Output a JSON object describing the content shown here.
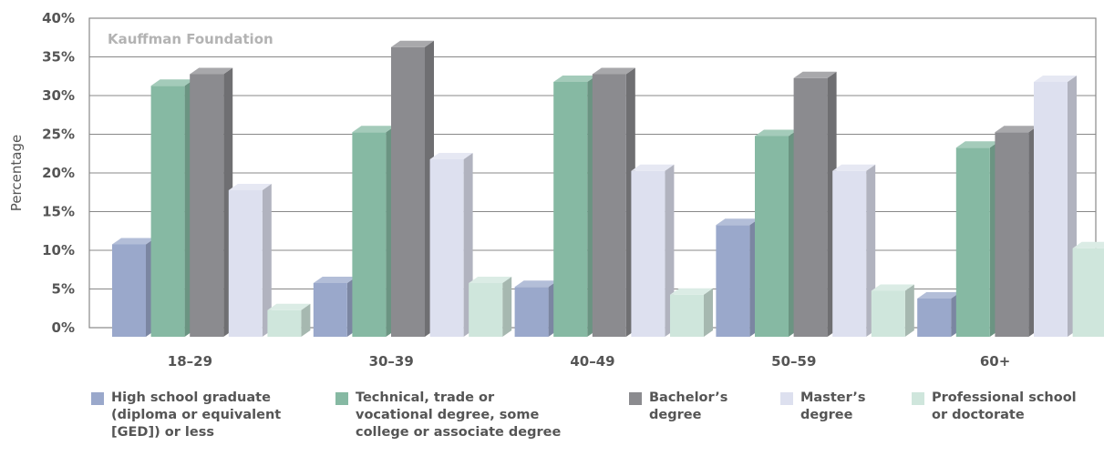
{
  "chart_data": {
    "type": "bar",
    "watermark": "Kauffman Foundation",
    "ylabel": "Percentage",
    "xlabel": "",
    "ylim": [
      0,
      40
    ],
    "yticks": [
      "0%",
      "5%",
      "10%",
      "15%",
      "20%",
      "25%",
      "30%",
      "35%",
      "40%"
    ],
    "categories": [
      "18–29",
      "30–39",
      "40–49",
      "50–59",
      "60+"
    ],
    "grid": true,
    "legend_position": "bottom",
    "series": [
      {
        "name": "High school graduate (diploma or equivalent [GED]) or less",
        "color": "#9aa8cb",
        "values": [
          11,
          6,
          5.5,
          13.5,
          4
        ]
      },
      {
        "name": "Technical, trade or vocational degree, some college or associate degree",
        "color": "#86b9a3",
        "values": [
          31.5,
          25.5,
          32,
          25,
          23.5
        ]
      },
      {
        "name": "Bachelor’s degree",
        "color": "#8b8b8f",
        "values": [
          33,
          36.5,
          33,
          32.5,
          25.5
        ]
      },
      {
        "name": "Master’s degree",
        "color": "#dde0ef",
        "values": [
          18,
          22,
          20.5,
          20.5,
          32
        ]
      },
      {
        "name": "Professional school or doctorate",
        "color": "#cfe6dc",
        "values": [
          2.5,
          6,
          4.5,
          5,
          10.5
        ]
      }
    ]
  },
  "legend": [
    {
      "text": "High school graduate\n(diploma or equivalent\n[GED]) or less",
      "color": "#9aa8cb"
    },
    {
      "text": "Technical, trade or\nvocational degree, some\ncollege or associate degree",
      "color": "#86b9a3"
    },
    {
      "text": "Bachelor’s\ndegree",
      "color": "#8b8b8f"
    },
    {
      "text": "Master’s\ndegree",
      "color": "#dde0ef"
    },
    {
      "text": "Professional school\nor doctorate",
      "color": "#cfe6dc"
    }
  ]
}
